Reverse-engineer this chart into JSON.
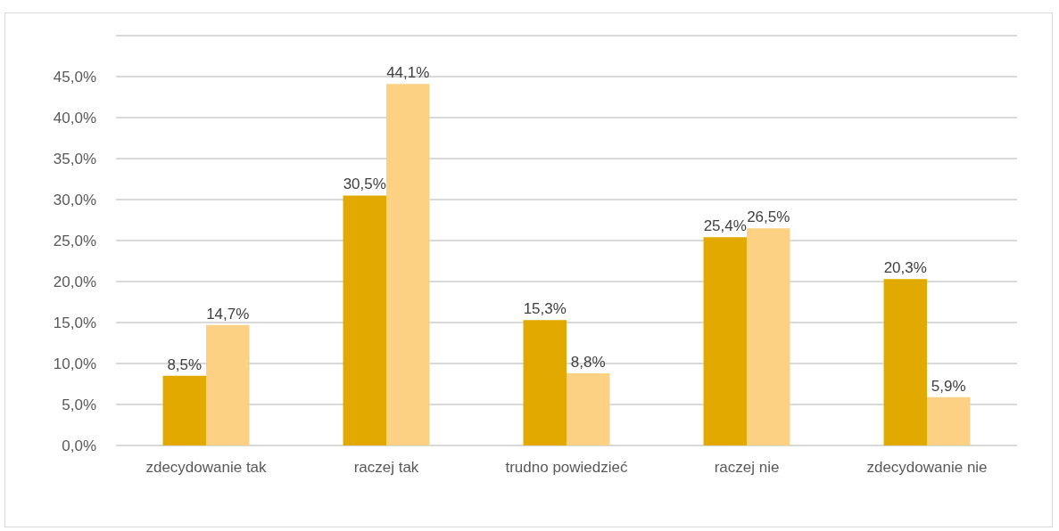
{
  "chart_data": {
    "type": "bar",
    "categories": [
      "zdecydowanie tak",
      "raczej tak",
      "trudno powiedzieć",
      "raczej nie",
      "zdecydowanie nie"
    ],
    "series": [
      {
        "color": "#e2aa00",
        "values": [
          8.5,
          30.5,
          15.3,
          25.4,
          20.3
        ],
        "value_labels": [
          "8,5%",
          "30,5%",
          "15,3%",
          "25,4%",
          "20,3%"
        ]
      },
      {
        "color": "#fdd184",
        "values": [
          14.7,
          44.1,
          8.8,
          26.5,
          5.9
        ],
        "value_labels": [
          "14,7%",
          "44,1%",
          "8,8%",
          "26,5%",
          "5,9%"
        ]
      }
    ],
    "ylim": [
      0,
      50
    ],
    "yticks": [
      {
        "value": 0,
        "label": "0,0%"
      },
      {
        "value": 5,
        "label": "5,0%"
      },
      {
        "value": 10,
        "label": "10,0%"
      },
      {
        "value": 15,
        "label": "15,0%"
      },
      {
        "value": 20,
        "label": "20,0%"
      },
      {
        "value": 25,
        "label": "25,0%"
      },
      {
        "value": 30,
        "label": "30,0%"
      },
      {
        "value": 35,
        "label": "35,0%"
      },
      {
        "value": 40,
        "label": "40,0%"
      },
      {
        "value": 45,
        "label": "45,0%"
      },
      {
        "value": 50,
        "label": null
      }
    ],
    "grid": "y"
  }
}
